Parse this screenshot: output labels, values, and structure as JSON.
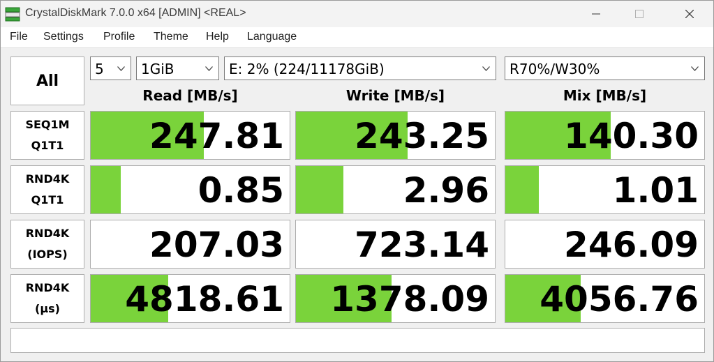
{
  "window": {
    "title": "CrystalDiskMark 7.0.0 x64 [ADMIN] <REAL>"
  },
  "menu": [
    "File",
    "Settings",
    "Profile",
    "Theme",
    "Help",
    "Language"
  ],
  "controls": {
    "all_label": "All",
    "count": "5",
    "size": "1GiB",
    "drive": "E: 2% (224/11178GiB)",
    "mix": "R70%/W30%"
  },
  "headers": {
    "read": "Read [MB/s]",
    "write": "Write [MB/s]",
    "mix": "Mix [MB/s]"
  },
  "rows": [
    {
      "line1": "SEQ1M",
      "line2": "Q1T1",
      "read": "247.81",
      "write": "243.25",
      "mix": "140.30",
      "read_fill": 0.57,
      "write_fill": 0.56,
      "mix_fill": 0.53
    },
    {
      "line1": "RND4K",
      "line2": "Q1T1",
      "read": "0.85",
      "write": "2.96",
      "mix": "1.01",
      "read_fill": 0.15,
      "write_fill": 0.24,
      "mix_fill": 0.17
    },
    {
      "line1": "RND4K",
      "line2": "(IOPS)",
      "read": "207.03",
      "write": "723.14",
      "mix": "246.09",
      "read_fill": 0.0,
      "write_fill": 0.0,
      "mix_fill": 0.0
    },
    {
      "line1": "RND4K",
      "line2": "(µs)",
      "read": "4818.61",
      "write": "1378.09",
      "mix": "4056.76",
      "read_fill": 0.39,
      "write_fill": 0.48,
      "mix_fill": 0.38
    }
  ],
  "status_text": "",
  "colors": {
    "bar": "#7ad33b",
    "accent_icon": "#3aa63a"
  }
}
